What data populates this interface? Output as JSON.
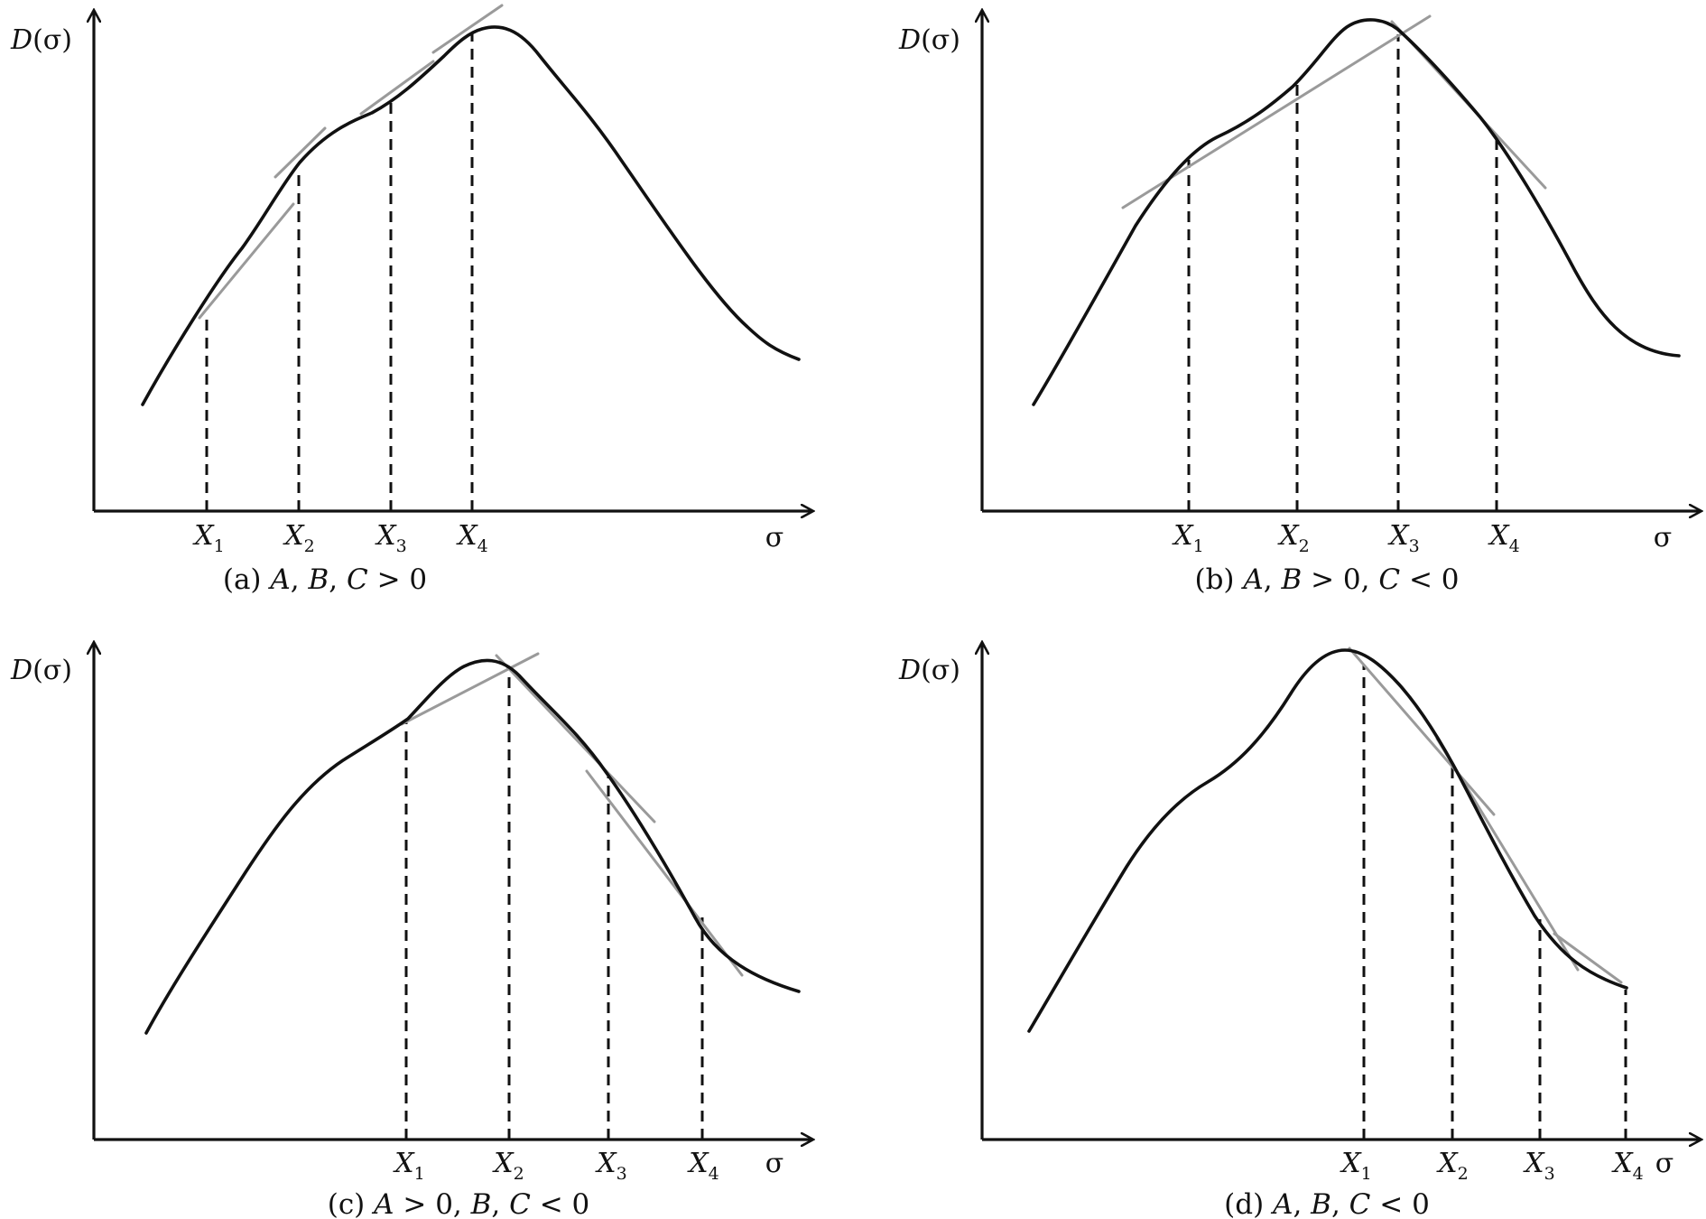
{
  "figure": {
    "panels": [
      {
        "id": "a",
        "caption_label": "(a)",
        "caption_parts": [
          {
            "text": "A",
            "italic": true
          },
          {
            "text": ", ",
            "italic": false
          },
          {
            "text": "B",
            "italic": true
          },
          {
            "text": ", ",
            "italic": false
          },
          {
            "text": "C",
            "italic": true
          },
          {
            "text": " > 0",
            "italic": false
          }
        ],
        "ylabel": "D(σ)",
        "xaxis_label": "σ",
        "ticks": [
          {
            "main": "X",
            "sub": "1"
          },
          {
            "main": "X",
            "sub": "2"
          },
          {
            "main": "X",
            "sub": "3"
          },
          {
            "main": "X",
            "sub": "4"
          }
        ]
      },
      {
        "id": "b",
        "caption_label": "(b)",
        "caption_parts": [
          {
            "text": "A",
            "italic": true
          },
          {
            "text": ", ",
            "italic": false
          },
          {
            "text": "B",
            "italic": true
          },
          {
            "text": " > 0, ",
            "italic": false
          },
          {
            "text": "C",
            "italic": true
          },
          {
            "text": " < 0",
            "italic": false
          }
        ],
        "ylabel": "D(σ)",
        "xaxis_label": "σ",
        "ticks": [
          {
            "main": "X",
            "sub": "1"
          },
          {
            "main": "X",
            "sub": "2"
          },
          {
            "main": "X",
            "sub": "3"
          },
          {
            "main": "X",
            "sub": "4"
          }
        ]
      },
      {
        "id": "c",
        "caption_label": "(c)",
        "caption_parts": [
          {
            "text": "A",
            "italic": true
          },
          {
            "text": " > 0, ",
            "italic": false
          },
          {
            "text": "B",
            "italic": true
          },
          {
            "text": ", ",
            "italic": false
          },
          {
            "text": "C",
            "italic": true
          },
          {
            "text": " < 0",
            "italic": false
          }
        ],
        "ylabel": "D(σ)",
        "xaxis_label": "σ",
        "ticks": [
          {
            "main": "X",
            "sub": "1"
          },
          {
            "main": "X",
            "sub": "2"
          },
          {
            "main": "X",
            "sub": "3"
          },
          {
            "main": "X",
            "sub": "4"
          }
        ]
      },
      {
        "id": "d",
        "caption_label": "(d)",
        "caption_parts": [
          {
            "text": "A",
            "italic": true
          },
          {
            "text": ", ",
            "italic": false
          },
          {
            "text": "B",
            "italic": true
          },
          {
            "text": ", ",
            "italic": false
          },
          {
            "text": "C",
            "italic": true
          },
          {
            "text": " < 0",
            "italic": false
          }
        ],
        "ylabel": "D(σ)",
        "xaxis_label": "σ",
        "ticks": [
          {
            "main": "X",
            "sub": "1"
          },
          {
            "main": "X",
            "sub": "2"
          },
          {
            "main": "X",
            "sub": "3"
          },
          {
            "main": "X",
            "sub": "4"
          }
        ]
      }
    ],
    "colors": {
      "curve": "#111111",
      "axis": "#111111",
      "tangent": "#9a9a9a",
      "dashed": "#111111"
    }
  }
}
